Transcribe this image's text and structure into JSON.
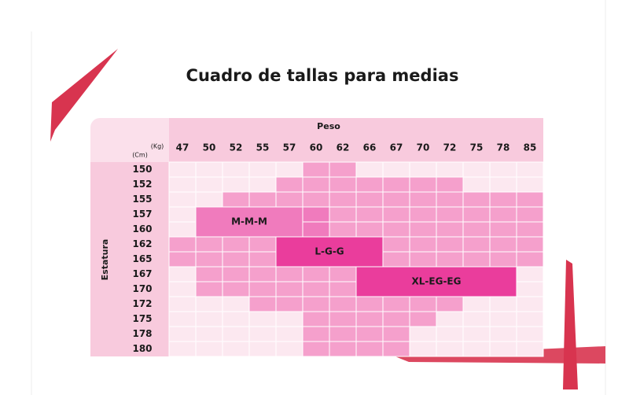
{
  "title": "Cuadro de tallas para medias",
  "weight_axis": {
    "label": "Peso",
    "unit": "(Kg)",
    "values": [
      "47",
      "50",
      "52",
      "55",
      "57",
      "60",
      "62",
      "66",
      "67",
      "70",
      "72",
      "75",
      "78",
      "85"
    ]
  },
  "height_axis": {
    "label": "Estatura",
    "unit": "(Cm)",
    "values": [
      "150",
      "152",
      "155",
      "157",
      "160",
      "162",
      "165",
      "167",
      "170",
      "172",
      "175",
      "178",
      "180"
    ]
  },
  "sizes": [
    "M-M-M",
    "L-G-G",
    "XL-EG-EG"
  ]
}
